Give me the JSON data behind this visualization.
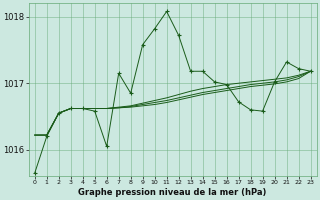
{
  "title": "Graphe pression niveau de la mer (hPa)",
  "background_color": "#cce8e0",
  "grid_color": "#66aa77",
  "line_color": "#1a5c1a",
  "xlim": [
    -0.5,
    23.5
  ],
  "ylim": [
    1015.6,
    1018.2
  ],
  "yticks": [
    1016,
    1017,
    1018
  ],
  "xticks": [
    0,
    1,
    2,
    3,
    4,
    5,
    6,
    7,
    8,
    9,
    10,
    11,
    12,
    13,
    14,
    15,
    16,
    17,
    18,
    19,
    20,
    21,
    22,
    23
  ],
  "main_y": [
    1015.65,
    1016.2,
    1016.55,
    1016.62,
    1016.62,
    1016.58,
    1016.05,
    1017.15,
    1016.85,
    1017.58,
    1017.82,
    1018.08,
    1017.72,
    1017.18,
    1017.18,
    1017.02,
    1016.98,
    1016.72,
    1016.6,
    1016.58,
    1017.02,
    1017.32,
    1017.22,
    1017.18
  ],
  "smooth1_y": [
    1016.22,
    1016.22,
    1016.55,
    1016.62,
    1016.62,
    1016.62,
    1016.62,
    1016.64,
    1016.66,
    1016.7,
    1016.74,
    1016.78,
    1016.83,
    1016.88,
    1016.92,
    1016.95,
    1016.98,
    1017.0,
    1017.02,
    1017.04,
    1017.06,
    1017.08,
    1017.12,
    1017.18
  ],
  "smooth2_y": [
    1016.22,
    1016.22,
    1016.55,
    1016.62,
    1016.62,
    1016.62,
    1016.62,
    1016.63,
    1016.65,
    1016.68,
    1016.71,
    1016.74,
    1016.78,
    1016.82,
    1016.86,
    1016.89,
    1016.92,
    1016.95,
    1016.98,
    1017.0,
    1017.02,
    1017.05,
    1017.1,
    1017.18
  ],
  "smooth3_y": [
    1016.22,
    1016.22,
    1016.55,
    1016.62,
    1016.62,
    1016.62,
    1016.62,
    1016.63,
    1016.64,
    1016.66,
    1016.68,
    1016.71,
    1016.75,
    1016.79,
    1016.83,
    1016.86,
    1016.89,
    1016.92,
    1016.95,
    1016.97,
    1016.99,
    1017.02,
    1017.07,
    1017.18
  ]
}
